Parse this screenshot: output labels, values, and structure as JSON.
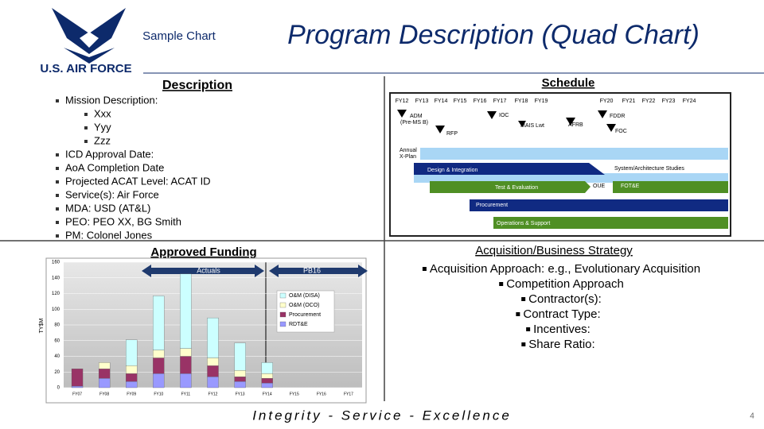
{
  "header": {
    "logo_text": "U.S. AIR FORCE",
    "subtitle": "Sample Chart",
    "title": "Program Description (Quad Chart)"
  },
  "description": {
    "heading": "Description",
    "items": [
      "Mission Description:",
      "Xxx",
      "Yyy",
      "Zzz",
      "ICD Approval Date:",
      "AoA Completion Date",
      "Projected ACAT Level:  ACAT ID",
      "Service(s):  Air Force",
      "MDA:  USD (AT&L)",
      "PEO:  PEO XX,  BG Smith",
      "PM:  Colonel Jones"
    ]
  },
  "schedule": {
    "heading": "Schedule",
    "years": [
      "FY12",
      "FY13",
      "FY14",
      "FY15",
      "FY16",
      "FY17",
      "FY18",
      "FY19",
      "FY20",
      "FY21",
      "FY22",
      "FY23",
      "FY24"
    ],
    "milestones": [
      "ADM",
      "(Pre-MS B)",
      "IOC",
      "RFP",
      "MAIS Lwt",
      "AFRB",
      "FDDR",
      "FOC"
    ],
    "activities": [
      "Annual",
      "X-Plan",
      "Design & Integration",
      "System/Architecture Studies",
      "Test & Evaluation",
      "OUE",
      "FOT&E",
      "Procurement",
      "Operations & Support"
    ]
  },
  "funding": {
    "heading": "Approved Funding",
    "periods": [
      "Actuals",
      "PB16"
    ]
  },
  "chart_data": {
    "type": "bar",
    "stacked": true,
    "y_label": "TY$M",
    "categories": [
      "FY07",
      "FY08",
      "FY09",
      "FY10",
      "FY11",
      "FY12",
      "FY13",
      "FY14",
      "FY15",
      "FY16",
      "FY17"
    ],
    "series": [
      {
        "name": "RDT&E",
        "color": "#9999ff",
        "values": [
          2,
          12,
          8,
          18,
          18,
          14,
          8,
          6,
          0,
          0,
          0
        ]
      },
      {
        "name": "Procurement",
        "color": "#993366",
        "values": [
          22,
          12,
          10,
          20,
          22,
          14,
          6,
          6,
          0,
          0,
          0
        ]
      },
      {
        "name": "O&M (OCO)",
        "color": "#ffffcc",
        "values": [
          0,
          8,
          10,
          10,
          10,
          10,
          8,
          6,
          0,
          0,
          0
        ]
      },
      {
        "name": "O&M (DISA)",
        "color": "#ccffff",
        "values": [
          0,
          0,
          33,
          69,
          95,
          51,
          35,
          14,
          0,
          0,
          0
        ]
      }
    ],
    "ylim": [
      0,
      160
    ],
    "yticks": [
      0,
      20,
      40,
      60,
      80,
      100,
      120,
      140,
      160
    ]
  },
  "strategy": {
    "heading": "Acquisition/Business Strategy",
    "items": [
      "Acquisition Approach: e.g., Evolutionary Acquisition",
      "Competition Approach",
      "Contractor(s):",
      "Contract Type:",
      "Incentives:",
      "Share Ratio:"
    ]
  },
  "footer": {
    "motto": "Integrity - Service - Excellence",
    "page": 4
  }
}
